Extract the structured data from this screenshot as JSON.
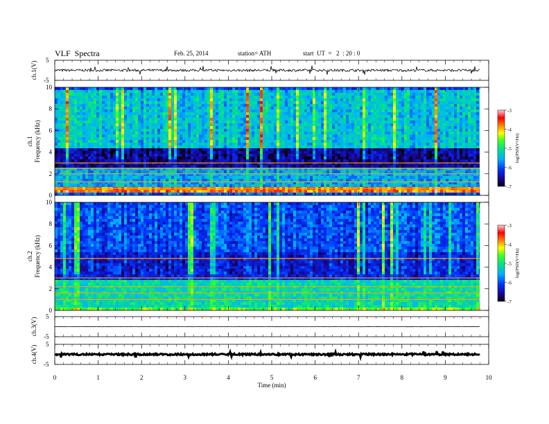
{
  "header": {
    "title": "VLF  Spectra",
    "date": "Feb. 25, 2014",
    "station": "station= ATH",
    "start": "start  UT  =   2  : 20 : 0"
  },
  "chart_data": [
    {
      "type": "line",
      "panel": "ch1-waveform",
      "ylabel": "ch.1(V)",
      "yticks": [
        "5",
        "-5"
      ],
      "ylim": [
        -5,
        5
      ],
      "x": [
        0,
        9.8
      ],
      "level": 0,
      "noise_amplitude": 0.6
    },
    {
      "type": "heatmap",
      "panel": "ch1-spectrogram",
      "ylabel": "ch.1 Frequency (kHz)",
      "ylabel_line1": "ch.1",
      "ylabel_line2": "Frequency  (kHz)",
      "yticks": [
        "0",
        "2",
        "4",
        "6",
        "8",
        "10"
      ],
      "ylim": [
        0,
        10
      ],
      "xlim": [
        0,
        9.8
      ],
      "colorbar": {
        "label": "log(PSD(V²/Hz)",
        "ticks": [
          "-3",
          "-4",
          "-5",
          "-6",
          "-7"
        ],
        "range": [
          -7,
          -3
        ]
      },
      "bands_khz": [
        {
          "from": 0,
          "to": 0.4,
          "level": -6
        },
        {
          "from": 0.4,
          "to": 0.8,
          "level": -3.8
        },
        {
          "from": 0.8,
          "to": 2.8,
          "level": -5.6
        },
        {
          "from": 2.8,
          "to": 4.5,
          "level": -6.6
        },
        {
          "from": 4.5,
          "to": 10,
          "level": -5.4
        }
      ],
      "lines_khz": [
        0.65,
        1.25,
        2.0,
        2.5,
        3.0
      ]
    },
    {
      "type": "heatmap",
      "panel": "ch2-spectrogram",
      "ylabel": "ch.2 Frequency (kHz)",
      "ylabel_line1": "ch.2",
      "ylabel_line2": "Frequency  (kHz)",
      "yticks": [
        "0",
        "2",
        "4",
        "6",
        "8",
        "10"
      ],
      "ylim": [
        0,
        10
      ],
      "xlim": [
        0,
        9.8
      ],
      "colorbar": {
        "label": "log(PSD(V²/Hz)",
        "ticks": [
          "-3",
          "-4",
          "-5",
          "-6",
          "-7"
        ],
        "range": [
          -7,
          -3
        ]
      },
      "bands_khz": [
        {
          "from": 0,
          "to": 0.5,
          "level": -4.6
        },
        {
          "from": 0.5,
          "to": 3.0,
          "level": -5.2
        },
        {
          "from": 3.0,
          "to": 5.5,
          "level": -6.3
        },
        {
          "from": 5.5,
          "to": 10,
          "level": -6.0
        }
      ],
      "lines_khz": [
        1.0,
        1.6,
        2.2,
        3.0,
        4.8
      ]
    },
    {
      "type": "line",
      "panel": "ch3-waveform",
      "ylabel": "ch.3(V)",
      "yticks": [
        "5",
        "-5"
      ],
      "ylim": [
        -5,
        5
      ],
      "x": [
        0,
        9.8
      ],
      "level": 0,
      "noise_amplitude": 0.08
    },
    {
      "type": "line",
      "panel": "ch4-waveform",
      "ylabel": "ch.4(V)",
      "yticks": [
        "5",
        "-5"
      ],
      "ylim": [
        -5,
        5
      ],
      "x": [
        0,
        9.8
      ],
      "level": 0,
      "noise_amplitude": 0.4
    }
  ],
  "xaxis": {
    "label": "Time  (min)",
    "ticks": [
      "0",
      "1",
      "2",
      "3",
      "4",
      "5",
      "6",
      "7",
      "8",
      "9",
      "10"
    ],
    "xlim": [
      0,
      10
    ]
  }
}
